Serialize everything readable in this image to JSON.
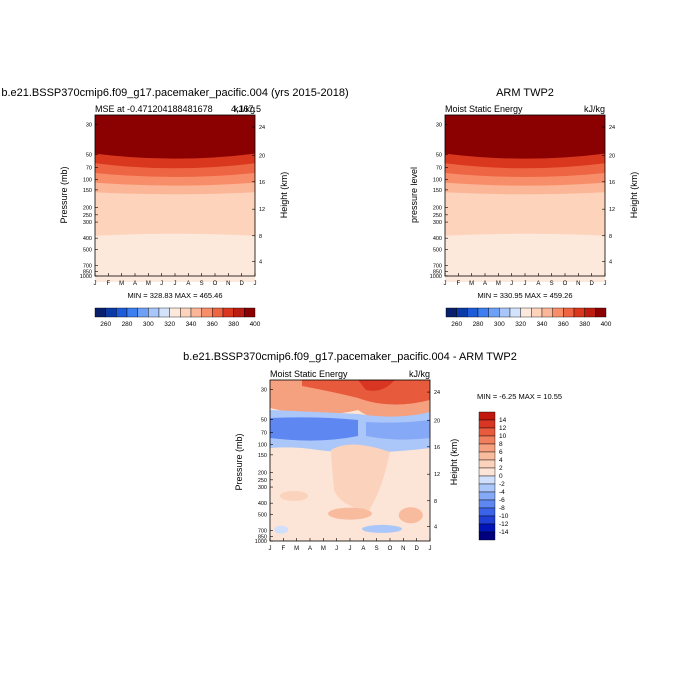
{
  "colors": {
    "abs_scale": [
      "#08206b",
      "#0b3aa6",
      "#1e5bd9",
      "#3d7ff0",
      "#6ea0f5",
      "#a8c6f9",
      "#d3e3fb",
      "#fde9dc",
      "#fdd3bc",
      "#fbb597",
      "#f78e69",
      "#ee6543",
      "#d9381f",
      "#bb1d10",
      "#8b0000"
    ],
    "diff_scale": [
      "#00007f",
      "#0014b8",
      "#1f3fd6",
      "#3a63ea",
      "#5e87f2",
      "#85a9f6",
      "#abc6f9",
      "#cfdffc",
      "#fce4d6",
      "#fbd2bb",
      "#f9bb9e",
      "#f5a07f",
      "#f07f5d",
      "#e85a3c",
      "#d93523",
      "#c2170e",
      "#a30505",
      "#8b0000"
    ]
  },
  "chart_data": [
    {
      "type": "heatmap",
      "title": "b.e21.BSSP370cmip6.f09_g17.pacemaker_pacific.004 (yrs 2015-2018)",
      "left_label": "MSE at -0.471204188481678",
      "right_label": "4,167.5",
      "units": "kJ/kg",
      "ylabel": "Pressure (mb)",
      "y2label": "Height (km)",
      "months": [
        "J",
        "F",
        "M",
        "A",
        "M",
        "J",
        "J",
        "A",
        "S",
        "O",
        "N",
        "D",
        "J"
      ],
      "pressure_ticks": [
        "30",
        "50",
        "70",
        "100",
        "150",
        "200",
        "250",
        "300",
        "400",
        "500",
        "700",
        "850",
        "1000"
      ],
      "height_ticks": [
        "24",
        "20",
        "16",
        "12",
        "8",
        "4"
      ],
      "minmax": "MIN = 328.83   MAX = 465.46",
      "min": 328.83,
      "max": 465.46,
      "colorbar_labels": [
        "260",
        "280",
        "300",
        "320",
        "340",
        "360",
        "380",
        "400"
      ]
    },
    {
      "type": "heatmap",
      "title": "ARM TWP2",
      "left_label": "Moist Static Energy",
      "right_label": "kJ/kg",
      "ylabel": "pressure level",
      "y2label": "Height (km)",
      "months": [
        "J",
        "F",
        "M",
        "A",
        "M",
        "J",
        "J",
        "A",
        "S",
        "O",
        "N",
        "D",
        "J"
      ],
      "pressure_ticks": [
        "30",
        "50",
        "70",
        "100",
        "150",
        "200",
        "250",
        "300",
        "400",
        "500",
        "700",
        "850",
        "1000"
      ],
      "height_ticks": [
        "24",
        "20",
        "16",
        "12",
        "8",
        "4"
      ],
      "minmax": "MIN = 330.95   MAX = 459.26",
      "min": 330.95,
      "max": 459.26,
      "colorbar_labels": [
        "260",
        "280",
        "300",
        "320",
        "340",
        "360",
        "380",
        "400"
      ]
    },
    {
      "type": "heatmap",
      "title": "b.e21.BSSP370cmip6.f09_g17.pacemaker_pacific.004 - ARM TWP2",
      "left_label": "Moist Static Energy",
      "right_label": "kJ/kg",
      "ylabel": "Pressure (mb)",
      "y2label": "Height (km)",
      "months": [
        "J",
        "F",
        "M",
        "A",
        "M",
        "J",
        "J",
        "A",
        "S",
        "O",
        "N",
        "D",
        "J"
      ],
      "pressure_ticks": [
        "30",
        "50",
        "70",
        "100",
        "150",
        "200",
        "250",
        "300",
        "400",
        "500",
        "700",
        "850",
        "1000"
      ],
      "height_ticks": [
        "24",
        "20",
        "16",
        "12",
        "8",
        "4"
      ],
      "minmax": "MIN =  -6.25  MAX =  10.55",
      "min": -6.25,
      "max": 10.55,
      "colorbar_labels": [
        "14",
        "12",
        "10",
        "8",
        "6",
        "4",
        "2",
        "0",
        "-2",
        "-4",
        "-6",
        "-8",
        "-10",
        "-12",
        "-14"
      ]
    }
  ]
}
